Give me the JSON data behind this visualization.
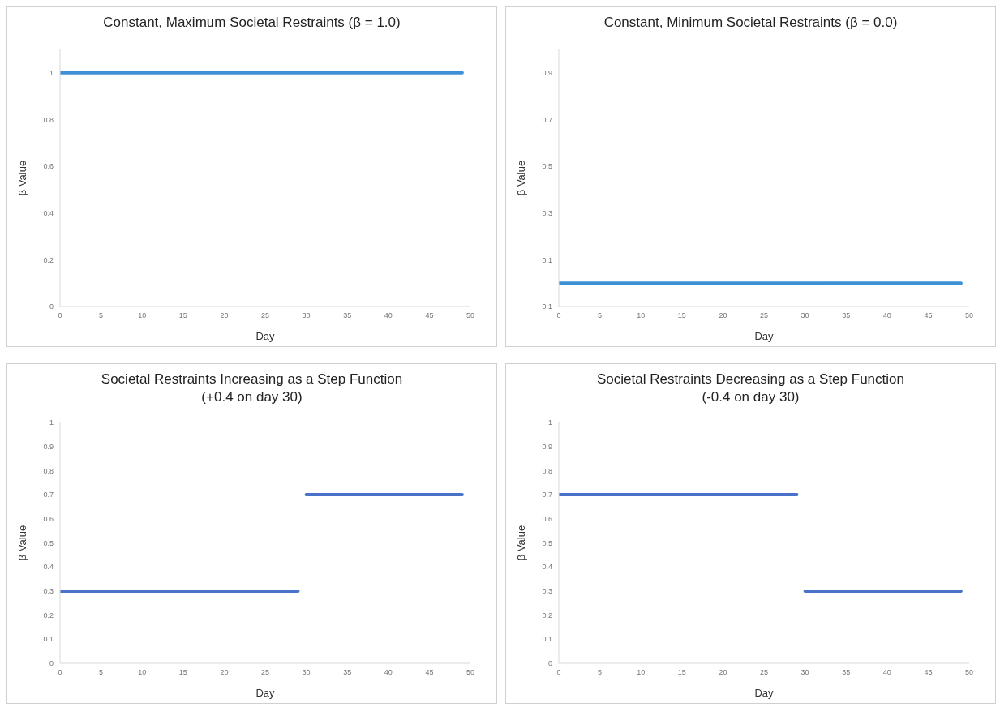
{
  "chart_data": [
    {
      "type": "line",
      "title": "Constant, Maximum Societal Restraints (β = 1.0)",
      "xlabel": "Day",
      "ylabel": "β Value",
      "xlim": [
        0,
        50
      ],
      "xticks": [
        0,
        5,
        10,
        15,
        20,
        25,
        30,
        35,
        40,
        45,
        50
      ],
      "ylim": [
        0,
        1.1
      ],
      "yticks": [
        0,
        0.2,
        0.4,
        0.6,
        0.8,
        1
      ],
      "grid": false,
      "marker": "none",
      "line_style": "solid",
      "series": [
        {
          "color": "#3d8fd6",
          "x": [
            0,
            49
          ],
          "values": [
            1,
            1
          ]
        }
      ]
    },
    {
      "type": "line",
      "title": "Constant, Minimum Societal Restraints (β = 0.0)",
      "xlabel": "Day",
      "ylabel": "β Value",
      "xlim": [
        0,
        50
      ],
      "xticks": [
        0,
        5,
        10,
        15,
        20,
        25,
        30,
        35,
        40,
        45,
        50
      ],
      "ylim": [
        -0.1,
        1
      ],
      "yticks": [
        -0.1,
        0.1,
        0.3,
        0.5,
        0.7,
        0.9
      ],
      "grid": false,
      "marker": "none",
      "line_style": "solid",
      "series": [
        {
          "color": "#3d8fd6",
          "x": [
            0,
            49
          ],
          "values": [
            0,
            0
          ]
        }
      ]
    },
    {
      "type": "line",
      "title": "Societal Restraints Increasing as a Step Function",
      "subtitle": "(+0.4 on day 30)",
      "xlabel": "Day",
      "ylabel": "β Value",
      "xlim": [
        0,
        50
      ],
      "xticks": [
        0,
        5,
        10,
        15,
        20,
        25,
        30,
        35,
        40,
        45,
        50
      ],
      "ylim": [
        0,
        1
      ],
      "yticks": [
        0,
        0.1,
        0.2,
        0.3,
        0.4,
        0.5,
        0.6,
        0.7,
        0.8,
        0.9,
        1
      ],
      "grid": false,
      "marker": "none",
      "line_style": "solid",
      "series": [
        {
          "color": "#4a72c8",
          "x": [
            0,
            29
          ],
          "values": [
            0.3,
            0.3
          ]
        },
        {
          "color": "#4a72c8",
          "x": [
            30,
            49
          ],
          "values": [
            0.7,
            0.7
          ]
        }
      ]
    },
    {
      "type": "line",
      "title": "Societal Restraints Decreasing as a Step Function",
      "subtitle": "(-0.4 on day 30)",
      "xlabel": "Day",
      "ylabel": "β Value",
      "xlim": [
        0,
        50
      ],
      "xticks": [
        0,
        5,
        10,
        15,
        20,
        25,
        30,
        35,
        40,
        45,
        50
      ],
      "ylim": [
        0,
        1
      ],
      "yticks": [
        0,
        0.1,
        0.2,
        0.3,
        0.4,
        0.5,
        0.6,
        0.7,
        0.8,
        0.9,
        1
      ],
      "grid": false,
      "marker": "none",
      "line_style": "solid",
      "series": [
        {
          "color": "#4a72c8",
          "x": [
            0,
            29
          ],
          "values": [
            0.7,
            0.7
          ]
        },
        {
          "color": "#4a72c8",
          "x": [
            30,
            49
          ],
          "values": [
            0.3,
            0.3
          ]
        }
      ]
    }
  ]
}
